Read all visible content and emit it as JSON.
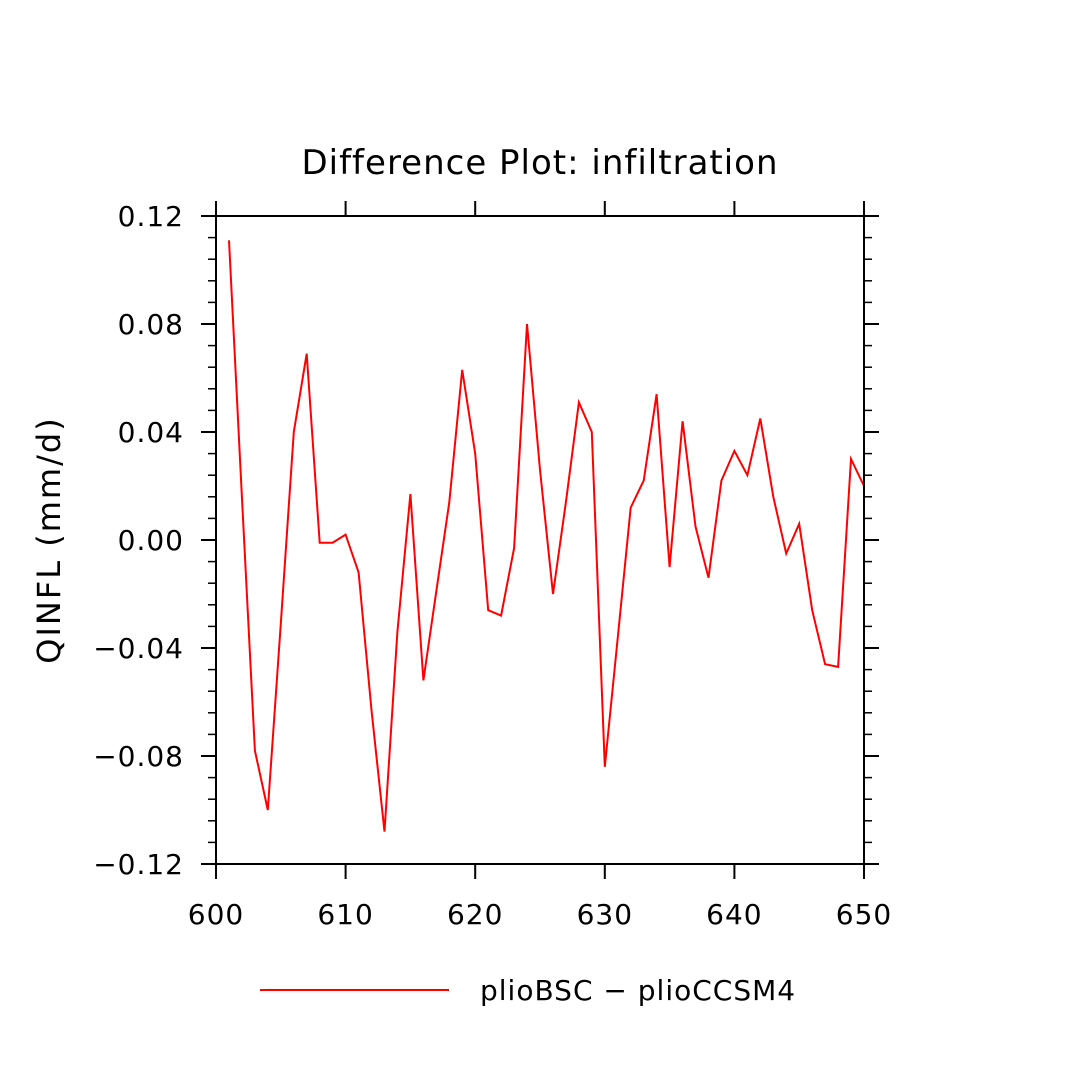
{
  "chart_data": {
    "type": "line",
    "title": "Difference Plot: infiltration",
    "xlabel": "",
    "ylabel": "QINFL  (mm/d)",
    "xlim": [
      600,
      650
    ],
    "ylim": [
      -0.12,
      0.12
    ],
    "x_ticks": [
      600,
      610,
      620,
      630,
      640,
      650
    ],
    "x_tick_labels": [
      "600",
      "610",
      "620",
      "630",
      "640",
      "650"
    ],
    "y_ticks": [
      -0.12,
      -0.08,
      -0.04,
      0.0,
      0.04,
      0.08,
      0.12
    ],
    "y_tick_labels": [
      "−0.12",
      "−0.08",
      "−0.04",
      "0.00",
      "0.04",
      "0.08",
      "0.12"
    ],
    "grid": false,
    "legend_position": "bottom",
    "series": [
      {
        "name": "plioBSC − plioCCSM4",
        "color": "#ff0000",
        "x": [
          601,
          602,
          603,
          604,
          605,
          606,
          607,
          608,
          609,
          610,
          611,
          612,
          613,
          614,
          615,
          616,
          617,
          618,
          619,
          620,
          621,
          622,
          623,
          624,
          625,
          626,
          627,
          628,
          629,
          630,
          631,
          632,
          633,
          634,
          635,
          636,
          637,
          638,
          639,
          640,
          641,
          642,
          643,
          644,
          645,
          646,
          647,
          648,
          649,
          650
        ],
        "values": [
          0.111,
          0.016,
          -0.078,
          -0.1,
          -0.031,
          0.04,
          0.069,
          -0.001,
          -0.001,
          0.002,
          -0.012,
          -0.063,
          -0.108,
          -0.034,
          0.017,
          -0.052,
          -0.019,
          0.014,
          0.063,
          0.032,
          -0.026,
          -0.028,
          -0.003,
          0.08,
          0.026,
          -0.02,
          0.014,
          0.051,
          0.04,
          -0.084,
          -0.036,
          0.012,
          0.022,
          0.054,
          -0.01,
          0.044,
          0.005,
          -0.014,
          0.022,
          0.033,
          0.024,
          0.045,
          0.016,
          -0.005,
          0.006,
          -0.026,
          -0.046,
          -0.047,
          0.03,
          0.02
        ]
      }
    ]
  }
}
